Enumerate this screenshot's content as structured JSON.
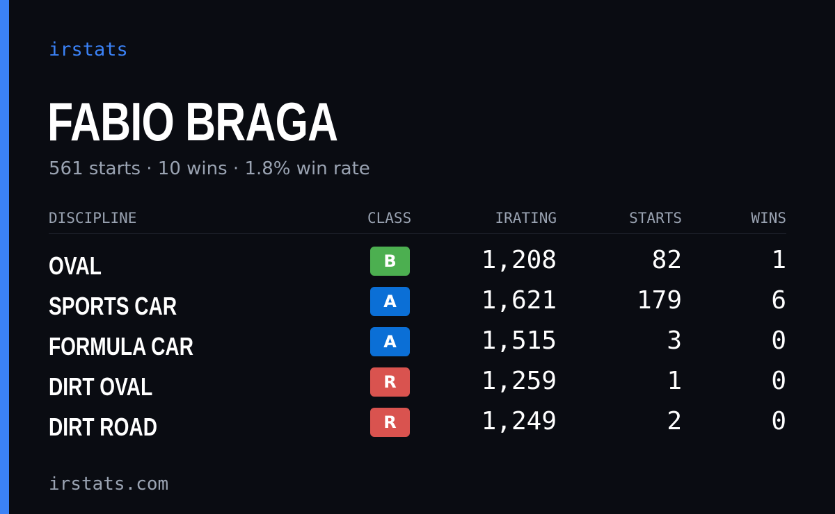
{
  "brand": "irstats",
  "player": {
    "name": "FABIO BRAGA",
    "summary": "561 starts · 10 wins · 1.8% win rate"
  },
  "table": {
    "headers": {
      "discipline": "DISCIPLINE",
      "class": "CLASS",
      "irating": "IRATING",
      "starts": "STARTS",
      "wins": "WINS"
    },
    "rows": [
      {
        "discipline": "OVAL",
        "class": "B",
        "irating": "1,208",
        "starts": "82",
        "wins": "1"
      },
      {
        "discipline": "SPORTS CAR",
        "class": "A",
        "irating": "1,621",
        "starts": "179",
        "wins": "6"
      },
      {
        "discipline": "FORMULA CAR",
        "class": "A",
        "irating": "1,515",
        "starts": "3",
        "wins": "0"
      },
      {
        "discipline": "DIRT OVAL",
        "class": "R",
        "irating": "1,259",
        "starts": "1",
        "wins": "0"
      },
      {
        "discipline": "DIRT ROAD",
        "class": "R",
        "irating": "1,249",
        "starts": "2",
        "wins": "0"
      }
    ]
  },
  "class_colors": {
    "A": "#0b6fd6",
    "B": "#4caf50",
    "R": "#d9534f"
  },
  "colors": {
    "accent": "#3b82f6",
    "background": "#0a0c12",
    "muted_text": "#9aa3b2"
  },
  "footer": {
    "url": "irstats.com"
  }
}
